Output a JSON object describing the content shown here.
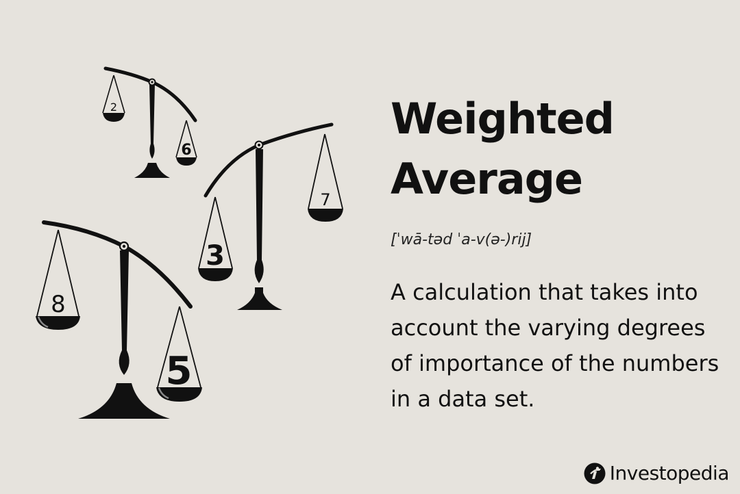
{
  "header": {
    "title_line1": "Weighted",
    "title_line2": "Average"
  },
  "pronunciation": "[ˈwā-təd ˈa-v(ə-)rij]",
  "definition": "A calculation that takes into account the varying degrees of importance of the numbers in a data set.",
  "brand": {
    "name": "Investopedia"
  },
  "scales": [
    {
      "left_weight": "2",
      "right_weight": "6"
    },
    {
      "left_weight": "3",
      "right_weight": "7"
    },
    {
      "left_weight": "8",
      "right_weight": "5"
    }
  ],
  "colors": {
    "background": "#e6e3dd",
    "ink": "#111111",
    "pan_highlight": "#8a8a8a"
  }
}
